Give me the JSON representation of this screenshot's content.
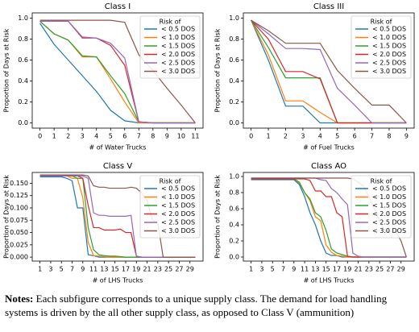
{
  "chart_data": [
    {
      "type": "line",
      "title": "Class I",
      "xlabel": "# of Water Trucks",
      "ylabel": "Proportion of Days at Risk",
      "legend_title": "Risk of",
      "legend": "upper right",
      "x": [
        0,
        1,
        2,
        3,
        4,
        5,
        6,
        7,
        8,
        9,
        10,
        11
      ],
      "xlim": [
        -0.55,
        11.55
      ],
      "xticks": [
        0,
        1,
        2,
        3,
        4,
        5,
        6,
        7,
        8,
        9,
        10,
        11
      ],
      "ylim": [
        -0.05,
        1.05
      ],
      "yticks": [
        {
          "value": 0,
          "label": "0.0"
        },
        {
          "value": 0.2,
          "label": "0.2"
        },
        {
          "value": 0.4,
          "label": "0.4"
        },
        {
          "value": 0.6,
          "label": "0.6"
        },
        {
          "value": 0.8,
          "label": "0.8"
        },
        {
          "value": 1,
          "label": "1.0"
        }
      ],
      "series": [
        {
          "name": "< 0.5 DOS",
          "color": "#1f77b4",
          "values": [
            0.95,
            0.75,
            0.6,
            0.45,
            0.3,
            0.12,
            0.02,
            0,
            0,
            0,
            0,
            0
          ]
        },
        {
          "name": "< 1.0 DOS",
          "color": "#ff7f0e",
          "values": [
            0.97,
            0.85,
            0.79,
            0.63,
            0.63,
            0.42,
            0.2,
            0,
            0,
            0,
            0,
            0
          ]
        },
        {
          "name": "< 1.5 DOS",
          "color": "#2ca02c",
          "values": [
            0.97,
            0.85,
            0.79,
            0.64,
            0.63,
            0.45,
            0.28,
            0.01,
            0,
            0,
            0,
            0
          ]
        },
        {
          "name": "< 2.0 DOS",
          "color": "#d62728",
          "values": [
            0.97,
            0.97,
            0.97,
            0.81,
            0.81,
            0.74,
            0.55,
            0.01,
            0,
            0,
            0,
            0
          ]
        },
        {
          "name": "< 2.5 DOS",
          "color": "#9467bd",
          "values": [
            0.97,
            0.97,
            0.97,
            0.82,
            0.81,
            0.76,
            0.62,
            0.01,
            0,
            0,
            0,
            0
          ]
        },
        {
          "name": "< 3.0 DOS",
          "color": "#8c564b",
          "values": [
            0.98,
            0.98,
            0.98,
            0.98,
            0.98,
            0.98,
            0.96,
            0.65,
            0.5,
            0.33,
            0.17,
            0
          ]
        }
      ]
    },
    {
      "type": "line",
      "title": "Class III",
      "xlabel": "# of Fuel Trucks",
      "ylabel": "Proportion of Days at Risk",
      "legend_title": "Risk of",
      "legend": "upper right",
      "x": [
        0,
        1,
        2,
        3,
        4,
        5,
        6,
        7,
        8,
        9
      ],
      "xlim": [
        -0.45,
        9.45
      ],
      "xticks": [
        0,
        1,
        2,
        3,
        4,
        5,
        6,
        7,
        8,
        9
      ],
      "ylim": [
        -0.05,
        1.05
      ],
      "yticks": [
        {
          "value": 0,
          "label": "0.0"
        },
        {
          "value": 0.2,
          "label": "0.2"
        },
        {
          "value": 0.4,
          "label": "0.4"
        },
        {
          "value": 0.6,
          "label": "0.6"
        },
        {
          "value": 0.8,
          "label": "0.8"
        },
        {
          "value": 1,
          "label": "1.0"
        }
      ],
      "series": [
        {
          "name": "< 0.5 DOS",
          "color": "#1f77b4",
          "values": [
            0.98,
            0.6,
            0.16,
            0.16,
            0,
            0,
            0,
            0,
            0,
            0
          ]
        },
        {
          "name": "< 1.0 DOS",
          "color": "#ff7f0e",
          "values": [
            0.98,
            0.65,
            0.21,
            0.21,
            0.1,
            0,
            0,
            0,
            0,
            0
          ]
        },
        {
          "name": "< 1.5 DOS",
          "color": "#2ca02c",
          "values": [
            0.98,
            0.72,
            0.43,
            0.43,
            0.43,
            0,
            0,
            0,
            0,
            0
          ]
        },
        {
          "name": "< 2.0 DOS",
          "color": "#d62728",
          "values": [
            0.98,
            0.8,
            0.49,
            0.49,
            0.42,
            0,
            0,
            0,
            0,
            0
          ]
        },
        {
          "name": "< 2.5 DOS",
          "color": "#9467bd",
          "values": [
            0.98,
            0.85,
            0.71,
            0.71,
            0.7,
            0.33,
            0.17,
            0,
            0,
            0
          ]
        },
        {
          "name": "< 3.0 DOS",
          "color": "#8c564b",
          "values": [
            0.98,
            0.88,
            0.76,
            0.76,
            0.76,
            0.5,
            0.33,
            0.17,
            0.17,
            0
          ]
        }
      ]
    },
    {
      "type": "line",
      "title": "Class V",
      "xlabel": "# of LHS Trucks",
      "ylabel": "Proportion of Days at Risk",
      "legend_title": "Risk of",
      "legend": "upper right",
      "x": [
        1,
        2,
        3,
        4,
        5,
        6,
        7,
        8,
        9,
        10,
        11,
        12,
        13,
        14,
        15,
        16,
        17,
        18,
        19,
        20,
        21,
        22,
        23,
        24,
        25,
        26,
        27,
        28,
        29,
        30
      ],
      "xlim": [
        -0.45,
        31.45
      ],
      "xticks": [
        1,
        3,
        5,
        7,
        9,
        11,
        13,
        15,
        17,
        19,
        21,
        23,
        25,
        27,
        29
      ],
      "ylim": [
        -0.008,
        0.172
      ],
      "yticks": [
        {
          "value": 0,
          "label": "0.000"
        },
        {
          "value": 0.025,
          "label": "0.025"
        },
        {
          "value": 0.05,
          "label": "0.050"
        },
        {
          "value": 0.075,
          "label": "0.075"
        },
        {
          "value": 0.1,
          "label": "0.100"
        },
        {
          "value": 0.125,
          "label": "0.125"
        },
        {
          "value": 0.15,
          "label": "0.150"
        }
      ],
      "series": [
        {
          "name": "< 0.5 DOS",
          "color": "#1f77b4",
          "values": [
            0.163,
            0.163,
            0.163,
            0.163,
            0.163,
            0.16,
            0.155,
            0.1,
            0.1,
            0.005,
            0.003,
            0,
            0,
            0,
            0,
            0,
            0,
            0,
            0,
            0,
            0,
            0,
            0,
            0,
            0,
            0,
            0,
            0,
            0,
            0
          ]
        },
        {
          "name": "< 1.0 DOS",
          "color": "#ff7f0e",
          "values": [
            0.165,
            0.165,
            0.165,
            0.165,
            0.165,
            0.165,
            0.16,
            0.16,
            0.12,
            0.03,
            0.003,
            0.002,
            0.001,
            0,
            0,
            0,
            0,
            0,
            0,
            0,
            0,
            0,
            0,
            0,
            0,
            0,
            0,
            0,
            0,
            0
          ]
        },
        {
          "name": "< 1.5 DOS",
          "color": "#2ca02c",
          "values": [
            0.165,
            0.165,
            0.165,
            0.165,
            0.165,
            0.165,
            0.165,
            0.16,
            0.16,
            0.06,
            0.015,
            0.005,
            0.003,
            0.002,
            0.002,
            0.001,
            0,
            0,
            0,
            0,
            0,
            0,
            0,
            0,
            0,
            0,
            0,
            0,
            0,
            0
          ]
        },
        {
          "name": "< 2.0 DOS",
          "color": "#d62728",
          "values": [
            0.165,
            0.165,
            0.165,
            0.165,
            0.165,
            0.165,
            0.165,
            0.165,
            0.16,
            0.105,
            0.06,
            0.06,
            0.055,
            0.055,
            0.055,
            0.057,
            0.05,
            0.05,
            0.002,
            0,
            0,
            0,
            0,
            0,
            0,
            0,
            0,
            0,
            0,
            0
          ]
        },
        {
          "name": "< 2.5 DOS",
          "color": "#9467bd",
          "values": [
            0.165,
            0.165,
            0.165,
            0.165,
            0.165,
            0.165,
            0.165,
            0.165,
            0.165,
            0.16,
            0.09,
            0.085,
            0.085,
            0.083,
            0.083,
            0.083,
            0.083,
            0.085,
            0.002,
            0,
            0,
            0,
            0,
            0,
            0,
            0,
            0,
            0,
            0,
            0
          ]
        },
        {
          "name": "< 3.0 DOS",
          "color": "#8c564b",
          "values": [
            0.167,
            0.167,
            0.167,
            0.167,
            0.167,
            0.167,
            0.167,
            0.167,
            0.167,
            0.165,
            0.145,
            0.142,
            0.142,
            0.14,
            0.14,
            0.14,
            0.14,
            0.142,
            0.14,
            0.13,
            0.115,
            0.075,
            0.07,
            0,
            0,
            0,
            0,
            0,
            0,
            0
          ]
        }
      ]
    },
    {
      "type": "line",
      "title": "Class AO",
      "xlabel": "# of LHS Trucks",
      "ylabel": "Proportion of Days at Risk",
      "legend_title": "Risk of",
      "legend": "upper right",
      "x": [
        1,
        2,
        3,
        4,
        5,
        6,
        7,
        8,
        9,
        10,
        11,
        12,
        13,
        14,
        15,
        16,
        17,
        18,
        19,
        20,
        21,
        22,
        23,
        24,
        25,
        26,
        27,
        28,
        29,
        30
      ],
      "xlim": [
        -0.45,
        31.45
      ],
      "xticks": [
        1,
        3,
        5,
        7,
        9,
        11,
        13,
        15,
        17,
        19,
        21,
        23,
        25,
        27,
        29
      ],
      "ylim": [
        -0.05,
        1.05
      ],
      "yticks": [
        {
          "value": 0,
          "label": "0.0"
        },
        {
          "value": 0.2,
          "label": "0.2"
        },
        {
          "value": 0.4,
          "label": "0.4"
        },
        {
          "value": 0.6,
          "label": "0.6"
        },
        {
          "value": 0.8,
          "label": "0.8"
        },
        {
          "value": 1,
          "label": "1.0"
        }
      ],
      "series": [
        {
          "name": "< 0.5 DOS",
          "color": "#1f77b4",
          "values": [
            0.96,
            0.96,
            0.96,
            0.96,
            0.96,
            0.96,
            0.96,
            0.96,
            0.96,
            0.9,
            0.75,
            0.55,
            0.4,
            0.2,
            0.05,
            0.02,
            0.02,
            0,
            0,
            0,
            0,
            0,
            0,
            0,
            0,
            0,
            0,
            0,
            0,
            0
          ]
        },
        {
          "name": "< 1.0 DOS",
          "color": "#ff7f0e",
          "values": [
            0.97,
            0.97,
            0.97,
            0.97,
            0.97,
            0.97,
            0.97,
            0.97,
            0.97,
            0.92,
            0.8,
            0.7,
            0.5,
            0.45,
            0.15,
            0.06,
            0.02,
            0.01,
            0,
            0,
            0,
            0,
            0,
            0,
            0,
            0,
            0,
            0,
            0,
            0
          ]
        },
        {
          "name": "< 1.5 DOS",
          "color": "#2ca02c",
          "values": [
            0.97,
            0.97,
            0.97,
            0.97,
            0.97,
            0.97,
            0.97,
            0.97,
            0.97,
            0.93,
            0.8,
            0.72,
            0.55,
            0.5,
            0.33,
            0.1,
            0.05,
            0.03,
            0.01,
            0,
            0,
            0,
            0,
            0,
            0,
            0,
            0,
            0,
            0,
            0
          ]
        },
        {
          "name": "< 2.0 DOS",
          "color": "#d62728",
          "values": [
            0.97,
            0.97,
            0.97,
            0.97,
            0.97,
            0.97,
            0.97,
            0.97,
            0.97,
            0.97,
            0.97,
            0.95,
            0.82,
            0.82,
            0.75,
            0.75,
            0.55,
            0.5,
            0.01,
            0,
            0,
            0,
            0,
            0,
            0,
            0,
            0,
            0,
            0,
            0
          ]
        },
        {
          "name": "< 2.5 DOS",
          "color": "#9467bd",
          "values": [
            0.98,
            0.98,
            0.98,
            0.98,
            0.98,
            0.98,
            0.98,
            0.98,
            0.98,
            0.98,
            0.98,
            0.98,
            0.98,
            0.96,
            0.95,
            0.85,
            0.8,
            0.72,
            0.65,
            0.05,
            0.01,
            0,
            0,
            0,
            0,
            0,
            0,
            0,
            0,
            0
          ]
        },
        {
          "name": "< 3.0 DOS",
          "color": "#8c564b",
          "values": [
            0.98,
            0.98,
            0.98,
            0.98,
            0.98,
            0.98,
            0.98,
            0.98,
            0.98,
            0.98,
            0.98,
            0.98,
            0.98,
            0.98,
            0.98,
            0.98,
            0.98,
            0.98,
            0.98,
            0.97,
            0.93,
            0.88,
            0.75,
            0.6,
            0.45,
            0.32,
            0.32,
            0.32,
            0.2,
            0
          ]
        }
      ]
    }
  ],
  "notes": {
    "label": "Notes:",
    "text": "Each subfigure corresponds to a unique supply class. The demand for load  handling systems is driven by the all other supply class, as opposed to Class V (ammunition)"
  }
}
